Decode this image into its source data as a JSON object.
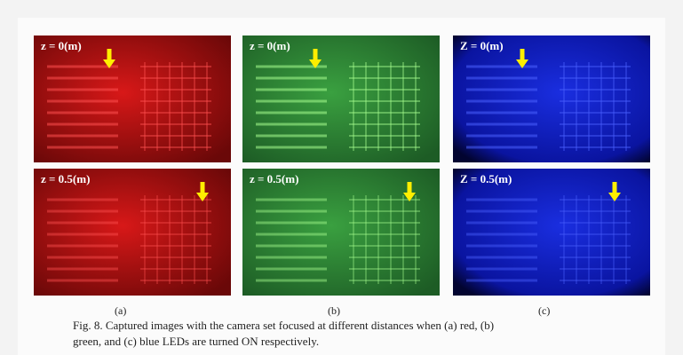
{
  "figure": {
    "panels": [
      {
        "label": "(a)",
        "images": [
          {
            "caption": "z = 0(m)"
          },
          {
            "caption": "z = 0.5(m)"
          }
        ]
      },
      {
        "label": "(b)",
        "images": [
          {
            "caption": "z = 0(m)"
          },
          {
            "caption": "z = 0.5(m)"
          }
        ]
      },
      {
        "label": "(c)",
        "images": [
          {
            "caption": "Z = 0(m)"
          },
          {
            "caption": "Z = 0.5(m)"
          }
        ]
      }
    ],
    "caption": [
      "Fig. 8. Captured images with the camera set focused at different distances when (a) red, (b)",
      "green, and (c) blue LEDs are turned ON respectively."
    ]
  }
}
